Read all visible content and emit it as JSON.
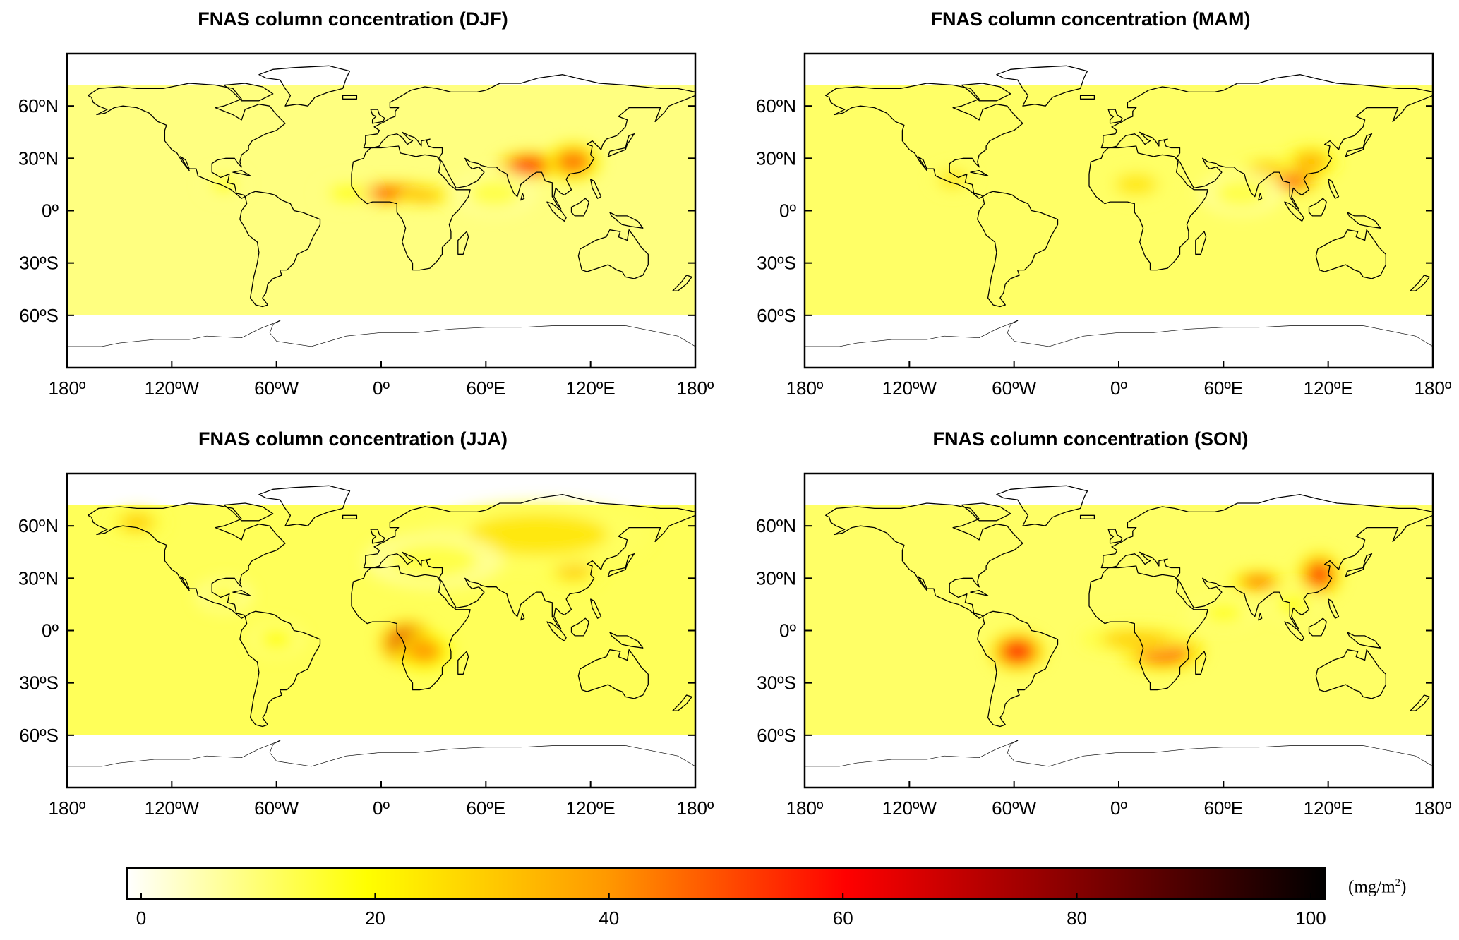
{
  "panels": [
    {
      "id": "djf",
      "title": "FNAS column concentration (DJF)"
    },
    {
      "id": "mam",
      "title": "FNAS column concentration (MAM)"
    },
    {
      "id": "jja",
      "title": "FNAS column concentration (JJA)"
    },
    {
      "id": "son",
      "title": "FNAS column concentration (SON)"
    }
  ],
  "axes": {
    "lat_ticks": [
      "60ºN",
      "30ºN",
      "0º",
      "30ºS",
      "60ºS"
    ],
    "lat_values": [
      60,
      30,
      0,
      -30,
      -60
    ],
    "lon_ticks": [
      "180º",
      "120ºW",
      "60ºW",
      "0º",
      "60ºE",
      "120ºE",
      "180º"
    ],
    "lon_values": [
      -180,
      -120,
      -60,
      0,
      60,
      120,
      180
    ],
    "lat_range": [
      -90,
      90
    ],
    "lon_range": [
      -180,
      180
    ]
  },
  "colorbar": {
    "ticks": [
      "0",
      "20",
      "40",
      "60",
      "80",
      "100"
    ],
    "tick_values": [
      0,
      20,
      40,
      60,
      80,
      100
    ],
    "range": [
      0,
      100
    ],
    "unit_prefix": "(mg/m",
    "unit_exp": "2",
    "unit_suffix": ")",
    "stops": [
      "#ffffff",
      "#ffff00",
      "#ff9900",
      "#ff0000",
      "#800000",
      "#000000"
    ]
  },
  "colors": {
    "land_outline": "#000000",
    "ocean": "#ffffff"
  }
}
